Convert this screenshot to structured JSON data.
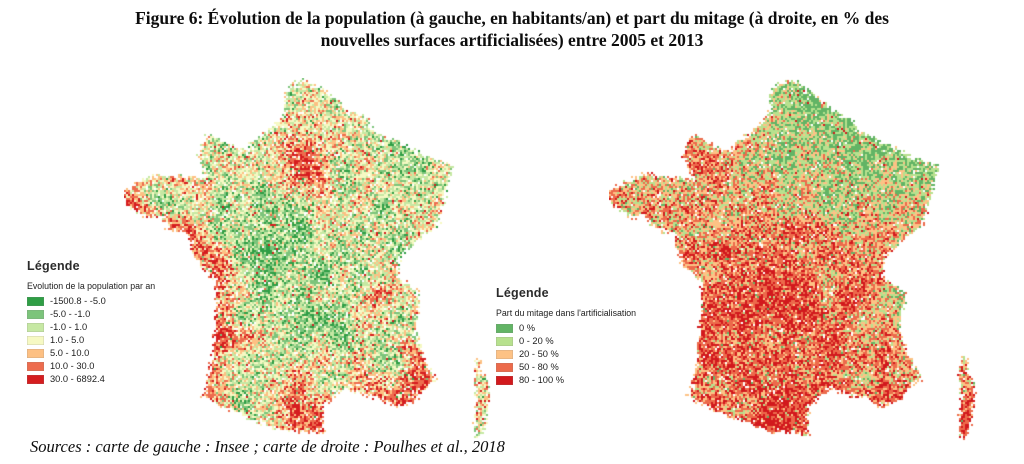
{
  "figure": {
    "title_line1": "Figure 6: Évolution de la population (à gauche, en habitants/an) et part du mitage (à droite, en % des",
    "title_line2": "nouvelles surfaces artificialisées) entre 2005 et 2013",
    "sources": "Sources : carte de gauche : Insee ; carte de droite : Poulhes et al., 2018"
  },
  "maps": {
    "left": {
      "name": "Évolution de la population (habitants/an)",
      "legend_title": "Légende",
      "legend_subtitle": "Evolution de la population par an",
      "items": [
        {
          "color": "#2f9e45",
          "label": "-1500.8 - -5.0"
        },
        {
          "color": "#7cc47b",
          "label": "-5.0 - -1.0"
        },
        {
          "color": "#c6e8a3",
          "label": "-1.0 - 1.0"
        },
        {
          "color": "#f6f9c3",
          "label": "1.0 - 5.0"
        },
        {
          "color": "#fdc083",
          "label": "5.0 - 10.0"
        },
        {
          "color": "#ed6c4e",
          "label": "10.0 - 30.0"
        },
        {
          "color": "#d51d1f",
          "label": "30.0 - 6892.4"
        }
      ]
    },
    "right": {
      "name": "Part du mitage (% des nouvelles surfaces artificialisées)",
      "legend_title": "Légende",
      "legend_subtitle": "Part du mitage dans l'artificialisation",
      "items": [
        {
          "color": "#62b465",
          "label": "0 %"
        },
        {
          "color": "#b7e18e",
          "label": "0 - 20 %"
        },
        {
          "color": "#fdc285",
          "label": "20 - 50 %"
        },
        {
          "color": "#ec6a4b",
          "label": "50 - 80 %"
        },
        {
          "color": "#d2191d",
          "label": "80 - 100 %"
        }
      ]
    }
  }
}
